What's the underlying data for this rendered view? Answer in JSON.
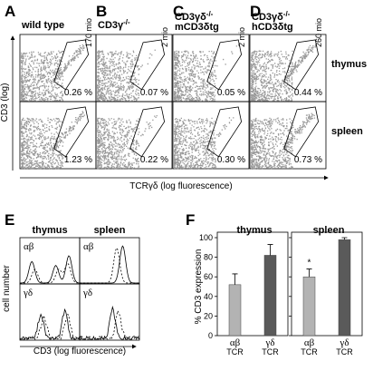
{
  "flow": {
    "letters": [
      "A",
      "B",
      "C",
      "D"
    ],
    "columns": [
      {
        "title": [
          {
            "base": "wild type",
            "sup": ""
          }
        ],
        "count": "170 mio",
        "percents": [
          "0.26 %",
          "1.23 %"
        ]
      },
      {
        "title": [
          {
            "base": "CD3γ",
            "sup": "-/-"
          }
        ],
        "count": "2 mio",
        "percents": [
          "0.07 %",
          "0.22 %"
        ]
      },
      {
        "title": [
          {
            "base": "CD3γδ",
            "sup": "-/-"
          },
          {
            "base": "mCD3δtg",
            "sup": ""
          }
        ],
        "count": "2 mio",
        "percents": [
          "0.05 %",
          "0.30 %"
        ]
      },
      {
        "title": [
          {
            "base": "CD3γδ",
            "sup": "-/-"
          },
          {
            "base": "hCD3δtg",
            "sup": ""
          }
        ],
        "count": "260 mio",
        "percents": [
          "0.44 %",
          "0.73 %"
        ]
      }
    ],
    "rows": [
      "thymus",
      "spleen"
    ],
    "y_label": "CD3 (log)",
    "x_label": "TCRγδ (log fluorescence)"
  },
  "histograms": {
    "letter": "E",
    "columns": [
      "thymus",
      "spleen"
    ],
    "rows": [
      "αβ",
      "γδ"
    ],
    "y_label": "cell number",
    "x_label": "CD3 (log fluorescence)"
  },
  "figure_f": {
    "letter": "F",
    "y_label": "% CD3 expression",
    "category_suffix": "TCR"
  },
  "chart_data": [
    {
      "type": "bar",
      "title": "thymus",
      "categories": [
        "αβ",
        "γδ"
      ],
      "values": [
        52,
        82
      ],
      "errors": [
        11,
        11
      ],
      "colors": [
        "#b3b3b3",
        "#5a5a5a"
      ],
      "ylim": [
        0,
        100
      ],
      "yticks": [
        0,
        20,
        40,
        60,
        80,
        100
      ],
      "tick_labels": true
    },
    {
      "type": "bar",
      "title": "spleen",
      "categories": [
        "αβ",
        "γδ"
      ],
      "values": [
        60,
        98
      ],
      "errors": [
        8,
        2
      ],
      "colors": [
        "#b3b3b3",
        "#5a5a5a"
      ],
      "ylim": [
        0,
        100
      ],
      "yticks": [
        0,
        20,
        40,
        60,
        80,
        100
      ],
      "tick_labels": false,
      "annotation": "*"
    }
  ]
}
